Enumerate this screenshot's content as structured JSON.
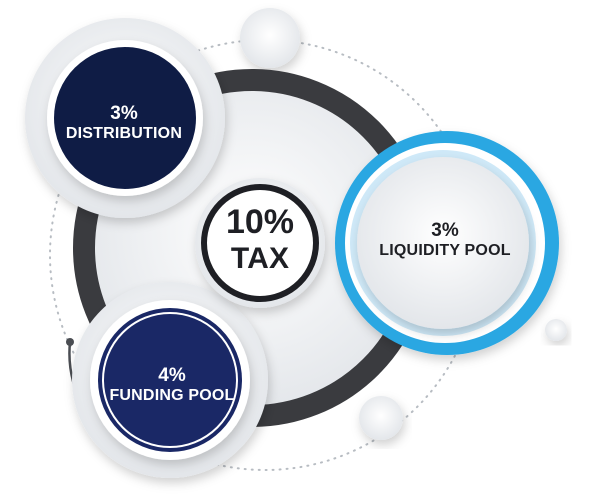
{
  "center": {
    "percent": "10%",
    "label": "TAX"
  },
  "segments": [
    {
      "percent": "3%",
      "label": "DISTRIBUTION",
      "color": "#0f1c45"
    },
    {
      "percent": "3%",
      "label": "LIQUIDITY POOL",
      "color": "#2aa7e2"
    },
    {
      "percent": "4%",
      "label": "FUNDING POOL",
      "color": "#1a2866"
    }
  ],
  "colors": {
    "ring": "#3a3b3f",
    "navy_dark": "#0f1c45",
    "navy": "#1a2866",
    "blue": "#2aa7e2",
    "circle_fill": "#f1f3f5"
  }
}
